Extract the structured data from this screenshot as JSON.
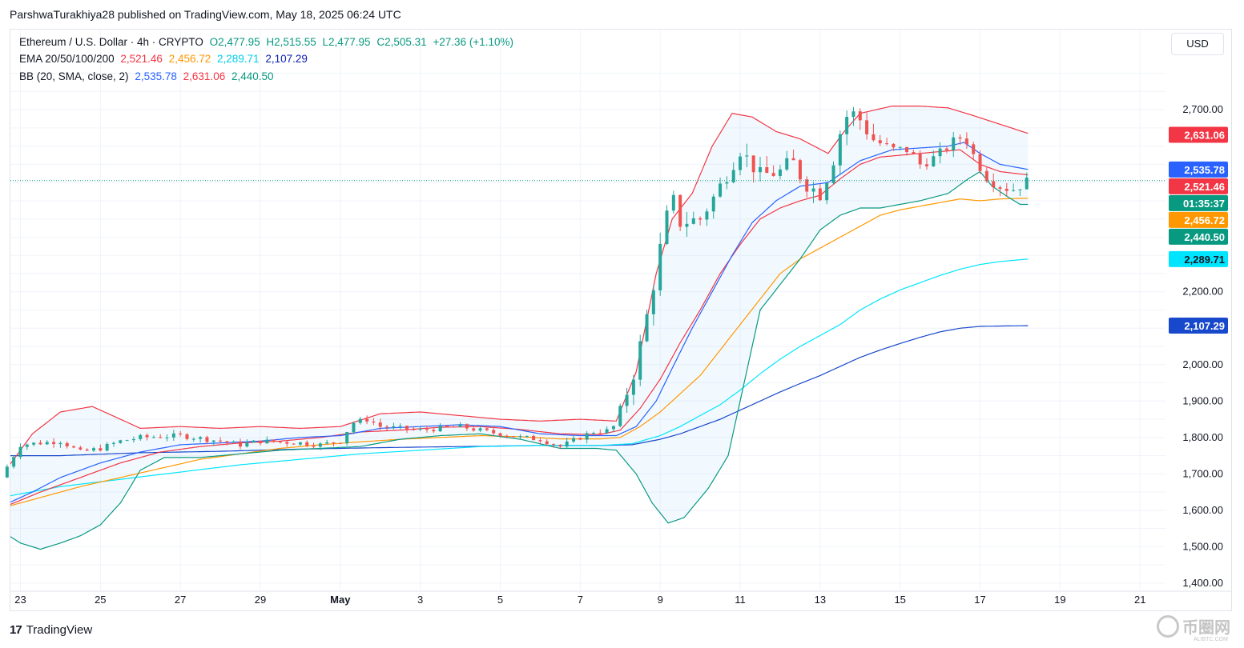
{
  "publisher": "ParshwaTurakhiya28 published on TradingView.com, May 18, 2025 06:24 UTC",
  "legend": {
    "symbol": "Ethereum / U.S. Dollar · 4h · CRYPTO",
    "o": "O2,477.95",
    "h": "H2,515.55",
    "l": "L2,477.95",
    "c": "C2,505.31",
    "chg": "+27.36 (+1.10%)",
    "ema_label": "EMA 20/50/100/200",
    "ema20": "2,521.46",
    "ema50": "2,456.72",
    "ema100": "2,289.71",
    "ema200": "2,107.29",
    "bb_label": "BB (20, SMA, close, 2)",
    "bb_mid": "2,535.78",
    "bb_up": "2,631.06",
    "bb_low": "2,440.50"
  },
  "currency": "USD",
  "footer": {
    "logo": "17",
    "brand": "TradingView"
  },
  "watermark": {
    "text": "币圈网",
    "sub": "ALIBTC.COM"
  },
  "colors": {
    "up": "#26a69a",
    "down": "#ef5350",
    "ema20": "#f23645",
    "ema50": "#ff9800",
    "ema100": "#00e5ff",
    "ema200": "#1848cc",
    "bb_mid": "#2962ff",
    "bb_up": "#f23645",
    "bb_low": "#089981",
    "bb_fill": "#2196f3"
  },
  "chart_data": {
    "type": "candlestick",
    "y_axis": {
      "ticks": [
        {
          "value": 1400,
          "label": "1,400.00"
        },
        {
          "value": 1500,
          "label": "1,500.00"
        },
        {
          "value": 1600,
          "label": "1,600.00"
        },
        {
          "value": 1700,
          "label": "1,700.00"
        },
        {
          "value": 1800,
          "label": "1,800.00"
        },
        {
          "value": 1900,
          "label": "1,900.00"
        },
        {
          "value": 2000,
          "label": "2,000.00"
        },
        {
          "value": 2200,
          "label": "2,200.00"
        },
        {
          "value": 2700,
          "label": "2,700.00"
        }
      ],
      "range": [
        1380,
        2920
      ]
    },
    "x_axis": {
      "ticks": [
        {
          "day": 23,
          "label": "23"
        },
        {
          "day": 25,
          "label": "25"
        },
        {
          "day": 27,
          "label": "27"
        },
        {
          "day": 29,
          "label": "29"
        },
        {
          "day": 31,
          "label": "May"
        },
        {
          "day": 33,
          "label": "3"
        },
        {
          "day": 35,
          "label": "5"
        },
        {
          "day": 37,
          "label": "7"
        },
        {
          "day": 39,
          "label": "9"
        },
        {
          "day": 41,
          "label": "11"
        },
        {
          "day": 43,
          "label": "13"
        },
        {
          "day": 45,
          "label": "15"
        },
        {
          "day": 47,
          "label": "17"
        },
        {
          "day": 49,
          "label": "19"
        },
        {
          "day": 51,
          "label": "21"
        }
      ],
      "range": [
        22.75,
        53.6
      ]
    },
    "last_price": 2505.31,
    "countdown": "01:35:37",
    "price_labels": [
      {
        "value": 2631.06,
        "label": "2,631.06",
        "color": "#f23645"
      },
      {
        "value": 2535.78,
        "label": "2,535.78",
        "color": "#2962ff"
      },
      {
        "value": 2521.46,
        "label": "2,521.46",
        "color": "#f23645"
      },
      {
        "value": 2505.31,
        "label": "01:35:37",
        "color": "#089981"
      },
      {
        "value": 2456.72,
        "label": "2,456.72",
        "color": "#ff9800"
      },
      {
        "value": 2440.5,
        "label": "2,440.50",
        "color": "#089981"
      },
      {
        "value": 2289.71,
        "label": "2,289.71",
        "color": "#00e5ff"
      },
      {
        "value": 2107.29,
        "label": "2,107.29",
        "color": "#1848cc"
      }
    ],
    "anchors": {
      "close": [
        [
          22.5,
          1690
        ],
        [
          23,
          1780
        ],
        [
          24,
          1790
        ],
        [
          24.5,
          1760
        ],
        [
          25,
          1770
        ],
        [
          25.5,
          1790
        ],
        [
          26,
          1800
        ],
        [
          27,
          1805
        ],
        [
          28,
          1790
        ],
        [
          28.5,
          1780
        ],
        [
          29,
          1790
        ],
        [
          30,
          1785
        ],
        [
          30.5,
          1780
        ],
        [
          31,
          1790
        ],
        [
          31.3,
          1840
        ],
        [
          31.7,
          1850
        ],
        [
          32,
          1830
        ],
        [
          33,
          1820
        ],
        [
          34,
          1830
        ],
        [
          34.7,
          1815
        ],
        [
          35,
          1810
        ],
        [
          35.5,
          1800
        ],
        [
          36,
          1795
        ],
        [
          36.5,
          1775
        ],
        [
          37,
          1800
        ],
        [
          37.3,
          1815
        ],
        [
          37.8,
          1820
        ],
        [
          38,
          1880
        ],
        [
          38.3,
          1960
        ],
        [
          38.6,
          2100
        ],
        [
          38.8,
          2200
        ],
        [
          39.1,
          2380
        ],
        [
          39.3,
          2460
        ],
        [
          39.5,
          2390
        ],
        [
          40,
          2400
        ],
        [
          40.4,
          2470
        ],
        [
          40.8,
          2550
        ],
        [
          41,
          2590
        ],
        [
          41.5,
          2520
        ],
        [
          42,
          2530
        ],
        [
          42.3,
          2560
        ],
        [
          42.6,
          2500
        ],
        [
          43,
          2470
        ],
        [
          43.3,
          2550
        ],
        [
          43.6,
          2680
        ],
        [
          43.9,
          2690
        ],
        [
          44.3,
          2620
        ],
        [
          44.8,
          2590
        ],
        [
          45.2,
          2590
        ],
        [
          45.5,
          2550
        ],
        [
          45.9,
          2570
        ],
        [
          46.3,
          2610
        ],
        [
          46.6,
          2630
        ],
        [
          46.9,
          2560
        ],
        [
          47.2,
          2510
        ],
        [
          47.5,
          2490
        ],
        [
          47.8,
          2480
        ],
        [
          48.0,
          2492
        ],
        [
          48.2,
          2505
        ]
      ],
      "bb_upper": [
        [
          22.5,
          1690
        ],
        [
          23.3,
          1810
        ],
        [
          24,
          1870
        ],
        [
          24.8,
          1885
        ],
        [
          25.5,
          1850
        ],
        [
          26,
          1825
        ],
        [
          27,
          1830
        ],
        [
          28,
          1825
        ],
        [
          29,
          1830
        ],
        [
          30,
          1825
        ],
        [
          31,
          1830
        ],
        [
          32,
          1865
        ],
        [
          33,
          1870
        ],
        [
          34,
          1860
        ],
        [
          35,
          1850
        ],
        [
          36,
          1845
        ],
        [
          37,
          1850
        ],
        [
          37.9,
          1845
        ],
        [
          38.4,
          1980
        ],
        [
          38.9,
          2250
        ],
        [
          39.3,
          2400
        ],
        [
          39.8,
          2470
        ],
        [
          40.3,
          2600
        ],
        [
          40.8,
          2690
        ],
        [
          41.3,
          2680
        ],
        [
          41.9,
          2640
        ],
        [
          42.5,
          2620
        ],
        [
          43.2,
          2580
        ],
        [
          43.6,
          2640
        ],
        [
          44,
          2690
        ],
        [
          44.8,
          2710
        ],
        [
          45.5,
          2710
        ],
        [
          46.2,
          2705
        ],
        [
          46.8,
          2685
        ],
        [
          47.5,
          2660
        ],
        [
          48.2,
          2635
        ]
      ],
      "bb_mid": [
        [
          22.5,
          1610
        ],
        [
          23.3,
          1650
        ],
        [
          24,
          1690
        ],
        [
          25,
          1730
        ],
        [
          26,
          1760
        ],
        [
          27,
          1780
        ],
        [
          28,
          1785
        ],
        [
          29,
          1790
        ],
        [
          30,
          1800
        ],
        [
          31,
          1805
        ],
        [
          32,
          1825
        ],
        [
          33,
          1830
        ],
        [
          34,
          1835
        ],
        [
          35,
          1830
        ],
        [
          36,
          1810
        ],
        [
          37,
          1805
        ],
        [
          37.9,
          1805
        ],
        [
          38.4,
          1830
        ],
        [
          38.9,
          1900
        ],
        [
          39.3,
          1990
        ],
        [
          39.8,
          2100
        ],
        [
          40.3,
          2200
        ],
        [
          40.8,
          2300
        ],
        [
          41.3,
          2390
        ],
        [
          41.9,
          2450
        ],
        [
          42.5,
          2490
        ],
        [
          43.2,
          2500
        ],
        [
          43.6,
          2530
        ],
        [
          44,
          2560
        ],
        [
          44.8,
          2590
        ],
        [
          45.5,
          2595
        ],
        [
          46.2,
          2600
        ],
        [
          46.6,
          2610
        ],
        [
          47,
          2580
        ],
        [
          47.5,
          2550
        ],
        [
          48.2,
          2536
        ]
      ],
      "bb_lower": [
        [
          22.5,
          1545
        ],
        [
          23,
          1510
        ],
        [
          23.5,
          1493
        ],
        [
          24,
          1510
        ],
        [
          24.5,
          1530
        ],
        [
          25,
          1560
        ],
        [
          25.5,
          1620
        ],
        [
          26,
          1710
        ],
        [
          26.6,
          1745
        ],
        [
          27.5,
          1745
        ],
        [
          28.5,
          1755
        ],
        [
          29.5,
          1765
        ],
        [
          30.5,
          1770
        ],
        [
          31.5,
          1775
        ],
        [
          32.5,
          1795
        ],
        [
          33.5,
          1805
        ],
        [
          34.5,
          1810
        ],
        [
          35.5,
          1795
        ],
        [
          36.5,
          1770
        ],
        [
          37.4,
          1770
        ],
        [
          37.9,
          1765
        ],
        [
          38.4,
          1700
        ],
        [
          38.8,
          1620
        ],
        [
          39.2,
          1565
        ],
        [
          39.6,
          1580
        ],
        [
          40.2,
          1660
        ],
        [
          40.7,
          1750
        ],
        [
          41,
          1900
        ],
        [
          41.5,
          2150
        ],
        [
          42,
          2220
        ],
        [
          42.5,
          2290
        ],
        [
          43,
          2370
        ],
        [
          43.5,
          2410
        ],
        [
          44,
          2430
        ],
        [
          44.5,
          2430
        ],
        [
          45,
          2440
        ],
        [
          45.5,
          2450
        ],
        [
          46.2,
          2470
        ],
        [
          46.7,
          2510
        ],
        [
          47,
          2530
        ],
        [
          47.3,
          2490
        ],
        [
          47.7,
          2460
        ],
        [
          48.0,
          2440
        ],
        [
          48.2,
          2440
        ]
      ],
      "ema20": [
        [
          22.5,
          1605
        ],
        [
          23.5,
          1650
        ],
        [
          24.5,
          1690
        ],
        [
          25.5,
          1730
        ],
        [
          26.5,
          1760
        ],
        [
          27.5,
          1775
        ],
        [
          28.5,
          1785
        ],
        [
          29.5,
          1790
        ],
        [
          30.5,
          1800
        ],
        [
          31.5,
          1815
        ],
        [
          32.5,
          1820
        ],
        [
          33.5,
          1828
        ],
        [
          34.5,
          1830
        ],
        [
          35.5,
          1822
        ],
        [
          36.5,
          1810
        ],
        [
          37.5,
          1808
        ],
        [
          38,
          1820
        ],
        [
          38.5,
          1880
        ],
        [
          39,
          1960
        ],
        [
          39.5,
          2060
        ],
        [
          40,
          2150
        ],
        [
          40.5,
          2250
        ],
        [
          41,
          2330
        ],
        [
          41.5,
          2400
        ],
        [
          42,
          2430
        ],
        [
          42.5,
          2450
        ],
        [
          43,
          2465
        ],
        [
          43.5,
          2510
        ],
        [
          44,
          2550
        ],
        [
          44.5,
          2570
        ],
        [
          45,
          2575
        ],
        [
          45.5,
          2580
        ],
        [
          46,
          2585
        ],
        [
          46.5,
          2590
        ],
        [
          47,
          2550
        ],
        [
          47.5,
          2530
        ],
        [
          48.2,
          2521
        ]
      ],
      "ema50": [
        [
          22.5,
          1605
        ],
        [
          23.5,
          1635
        ],
        [
          24.5,
          1665
        ],
        [
          25.5,
          1690
        ],
        [
          26.5,
          1715
        ],
        [
          27.5,
          1740
        ],
        [
          28.5,
          1755
        ],
        [
          29.5,
          1770
        ],
        [
          30.5,
          1780
        ],
        [
          31.5,
          1788
        ],
        [
          32.5,
          1795
        ],
        [
          33.5,
          1800
        ],
        [
          34.5,
          1805
        ],
        [
          35.5,
          1802
        ],
        [
          36.5,
          1796
        ],
        [
          37.5,
          1796
        ],
        [
          38,
          1800
        ],
        [
          38.5,
          1830
        ],
        [
          39,
          1870
        ],
        [
          39.5,
          1920
        ],
        [
          40,
          1970
        ],
        [
          40.5,
          2040
        ],
        [
          41,
          2110
        ],
        [
          41.5,
          2180
        ],
        [
          42,
          2250
        ],
        [
          42.5,
          2290
        ],
        [
          43,
          2320
        ],
        [
          43.5,
          2350
        ],
        [
          44,
          2380
        ],
        [
          44.5,
          2410
        ],
        [
          45,
          2425
        ],
        [
          45.5,
          2435
        ],
        [
          46,
          2445
        ],
        [
          46.5,
          2455
        ],
        [
          47,
          2450
        ],
        [
          47.5,
          2455
        ],
        [
          48.2,
          2457
        ]
      ],
      "ema100": [
        [
          22.5,
          1635
        ],
        [
          24,
          1665
        ],
        [
          25.5,
          1685
        ],
        [
          27,
          1705
        ],
        [
          28.5,
          1725
        ],
        [
          30,
          1740
        ],
        [
          31.5,
          1755
        ],
        [
          33,
          1765
        ],
        [
          34.5,
          1775
        ],
        [
          36,
          1778
        ],
        [
          37.5,
          1778
        ],
        [
          38.3,
          1783
        ],
        [
          39,
          1805
        ],
        [
          39.5,
          1830
        ],
        [
          40,
          1860
        ],
        [
          40.5,
          1890
        ],
        [
          41,
          1930
        ],
        [
          41.5,
          1975
        ],
        [
          42,
          2015
        ],
        [
          42.5,
          2050
        ],
        [
          43,
          2080
        ],
        [
          43.5,
          2110
        ],
        [
          44,
          2150
        ],
        [
          44.5,
          2180
        ],
        [
          45,
          2205
        ],
        [
          45.5,
          2225
        ],
        [
          46,
          2245
        ],
        [
          46.5,
          2262
        ],
        [
          47,
          2275
        ],
        [
          47.5,
          2283
        ],
        [
          48.2,
          2290
        ]
      ],
      "ema200": [
        [
          22.5,
          1750
        ],
        [
          24,
          1750
        ],
        [
          26,
          1758
        ],
        [
          28,
          1762
        ],
        [
          30,
          1768
        ],
        [
          32,
          1772
        ],
        [
          34,
          1775
        ],
        [
          36,
          1778
        ],
        [
          37.5,
          1778
        ],
        [
          38.3,
          1780
        ],
        [
          39,
          1795
        ],
        [
          39.5,
          1810
        ],
        [
          40,
          1830
        ],
        [
          40.5,
          1850
        ],
        [
          41,
          1875
        ],
        [
          41.5,
          1900
        ],
        [
          42,
          1925
        ],
        [
          42.5,
          1948
        ],
        [
          43,
          1970
        ],
        [
          43.5,
          1995
        ],
        [
          44,
          2020
        ],
        [
          44.5,
          2040
        ],
        [
          45,
          2058
        ],
        [
          45.5,
          2075
        ],
        [
          46,
          2090
        ],
        [
          46.5,
          2100
        ],
        [
          47,
          2105
        ],
        [
          47.5,
          2106
        ],
        [
          48.2,
          2107
        ]
      ]
    }
  }
}
